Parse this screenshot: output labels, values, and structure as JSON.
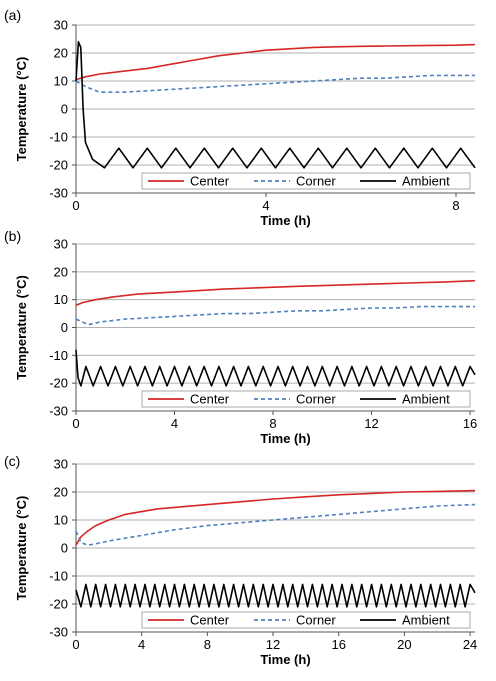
{
  "colors": {
    "center": "#d62728",
    "corner": "#4f81bd",
    "ambient": "#000000",
    "grid": "#b0b0b0"
  },
  "chart_data": [
    {
      "type": "line",
      "panel_label": "(a)",
      "xlabel": "Time (h)",
      "ylabel": "Temperature (°C)",
      "xlim": [
        0,
        8.4
      ],
      "ylim": [
        -30,
        30
      ],
      "xticks": [
        0,
        4,
        8
      ],
      "yticks": [
        -30,
        -20,
        -10,
        0,
        10,
        20,
        30
      ],
      "grid": "horizontal",
      "legend": "bottom-right",
      "series": [
        {
          "name": "Center",
          "style": "solid",
          "x": [
            0,
            0.2,
            0.5,
            1,
            1.5,
            2,
            2.5,
            3,
            3.5,
            4,
            4.5,
            5,
            5.5,
            6,
            6.5,
            7,
            7.5,
            8,
            8.4
          ],
          "y": [
            10.5,
            11.5,
            12.5,
            13.5,
            14.5,
            16,
            17.5,
            19,
            20,
            21,
            21.5,
            22,
            22.2,
            22.4,
            22.5,
            22.6,
            22.7,
            22.8,
            23
          ]
        },
        {
          "name": "Corner",
          "style": "dashed",
          "x": [
            0,
            0.2,
            0.5,
            1,
            1.5,
            2,
            2.5,
            3,
            3.5,
            4,
            4.5,
            5,
            5.5,
            6,
            6.5,
            7,
            7.5,
            8,
            8.4
          ],
          "y": [
            10,
            8,
            6,
            6,
            6.5,
            7,
            7.5,
            8,
            8.5,
            9,
            9.5,
            10,
            10.5,
            11,
            11,
            11.5,
            12,
            12,
            12
          ]
        },
        {
          "name": "Ambient",
          "style": "solid",
          "x": [
            0,
            0.05,
            0.1,
            0.15,
            0.2,
            0.35,
            0.6,
            0.9,
            1.2,
            1.5,
            1.8,
            2.1,
            2.4,
            2.7,
            3,
            3.3,
            3.6,
            3.9,
            4.2,
            4.5,
            4.8,
            5.1,
            5.4,
            5.7,
            6,
            6.3,
            6.6,
            6.9,
            7.2,
            7.5,
            7.8,
            8.1,
            8.4
          ],
          "y": [
            10,
            24,
            22,
            0,
            -12,
            -18,
            -21,
            -14,
            -21,
            -14,
            -21,
            -14,
            -21,
            -14,
            -21,
            -14,
            -21,
            -14,
            -21,
            -14,
            -21,
            -14,
            -21,
            -14,
            -21,
            -14,
            -21,
            -14,
            -21,
            -14,
            -21,
            -14,
            -21
          ]
        }
      ]
    },
    {
      "type": "line",
      "panel_label": "(b)",
      "xlabel": "Time (h)",
      "ylabel": "Temperature (°C)",
      "xlim": [
        0,
        16.2
      ],
      "ylim": [
        -30,
        30
      ],
      "xticks": [
        0,
        4,
        8,
        12,
        16
      ],
      "yticks": [
        -30,
        -20,
        -10,
        0,
        10,
        20,
        30
      ],
      "grid": "horizontal",
      "legend": "bottom-right",
      "series": [
        {
          "name": "Center",
          "style": "solid",
          "x": [
            0,
            0.3,
            0.8,
            1.5,
            2.5,
            3.5,
            4.5,
            6,
            7.5,
            9,
            10.5,
            12,
            13.5,
            15,
            16.2
          ],
          "y": [
            8,
            9,
            10,
            11,
            12,
            12.5,
            13,
            13.8,
            14.3,
            14.8,
            15.2,
            15.6,
            16,
            16.4,
            16.8
          ]
        },
        {
          "name": "Corner",
          "style": "dashed",
          "x": [
            0,
            0.5,
            1,
            2,
            3,
            4,
            5,
            6,
            7,
            8,
            9,
            10,
            11,
            12,
            13,
            14,
            15,
            16.2
          ],
          "y": [
            3,
            1,
            2,
            3,
            3.5,
            4,
            4.5,
            5,
            5,
            5.5,
            6,
            6,
            6.5,
            7,
            7,
            7.5,
            7.5,
            7.5
          ]
        },
        {
          "name": "Ambient",
          "style": "solid",
          "x": [
            0,
            0.08,
            0.2,
            0.4,
            0.7,
            1.0,
            1.3,
            1.6,
            1.9,
            2.2,
            2.5,
            2.8,
            3.1,
            3.4,
            3.7,
            4.0,
            4.3,
            4.6,
            4.9,
            5.2,
            5.5,
            5.8,
            6.1,
            6.4,
            6.7,
            7.0,
            7.3,
            7.6,
            7.9,
            8.2,
            8.5,
            8.8,
            9.1,
            9.4,
            9.7,
            10.0,
            10.3,
            10.6,
            10.9,
            11.2,
            11.5,
            11.8,
            12.1,
            12.4,
            12.7,
            13.0,
            13.3,
            13.6,
            13.9,
            14.2,
            14.5,
            14.8,
            15.1,
            15.4,
            15.7,
            16.0,
            16.2
          ],
          "y": [
            -8,
            -18,
            -21,
            -14,
            -21,
            -14,
            -21,
            -14,
            -21,
            -14,
            -21,
            -14,
            -21,
            -14,
            -21,
            -14,
            -21,
            -14,
            -21,
            -14,
            -21,
            -14,
            -21,
            -14,
            -21,
            -14,
            -21,
            -14,
            -21,
            -14,
            -21,
            -14,
            -21,
            -14,
            -21,
            -14,
            -21,
            -14,
            -21,
            -14,
            -21,
            -14,
            -21,
            -14,
            -21,
            -14,
            -21,
            -14,
            -21,
            -14,
            -21,
            -14,
            -21,
            -14,
            -21,
            -14,
            -17
          ]
        }
      ]
    },
    {
      "type": "line",
      "panel_label": "(c)",
      "xlabel": "Time (h)",
      "ylabel": "Temperature (°C)",
      "xlim": [
        0,
        24.3
      ],
      "ylim": [
        -30,
        30
      ],
      "xticks": [
        0,
        4,
        8,
        12,
        16,
        20,
        24
      ],
      "yticks": [
        -30,
        -20,
        -10,
        0,
        10,
        20,
        30
      ],
      "grid": "horizontal",
      "legend": "bottom-right",
      "series": [
        {
          "name": "Center",
          "style": "solid",
          "x": [
            0,
            0.3,
            0.7,
            1.2,
            2,
            3,
            4,
            5,
            6,
            8,
            10,
            12,
            14,
            16,
            18,
            20,
            22,
            24.3
          ],
          "y": [
            1,
            4,
            6,
            8,
            10,
            12,
            13,
            14,
            14.5,
            15.5,
            16.5,
            17.5,
            18.3,
            19,
            19.5,
            20,
            20.2,
            20.5
          ]
        },
        {
          "name": "Corner",
          "style": "dashed",
          "x": [
            0,
            0.3,
            0.7,
            1.2,
            2,
            3,
            4,
            5,
            6,
            8,
            10,
            12,
            14,
            16,
            18,
            20,
            22,
            24.3
          ],
          "y": [
            6,
            2,
            1,
            1.5,
            2.5,
            3.5,
            4.5,
            5.5,
            6.5,
            8,
            9,
            10,
            11,
            12,
            13,
            14,
            15,
            15.5
          ]
        },
        {
          "name": "Ambient",
          "style": "solid",
          "x": [
            0,
            0.3,
            0.6,
            0.9,
            1.2,
            1.5,
            1.8,
            2.1,
            2.4,
            2.7,
            3.0,
            3.3,
            3.6,
            3.9,
            4.2,
            4.5,
            4.8,
            5.1,
            5.4,
            5.7,
            6.0,
            6.3,
            6.6,
            6.9,
            7.2,
            7.5,
            7.8,
            8.1,
            8.4,
            8.7,
            9.0,
            9.3,
            9.6,
            9.9,
            10.2,
            10.5,
            10.8,
            11.1,
            11.4,
            11.7,
            12.0,
            12.3,
            12.6,
            12.9,
            13.2,
            13.5,
            13.8,
            14.1,
            14.4,
            14.7,
            15.0,
            15.3,
            15.6,
            15.9,
            16.2,
            16.5,
            16.8,
            17.1,
            17.4,
            17.7,
            18.0,
            18.3,
            18.6,
            18.9,
            19.2,
            19.5,
            19.8,
            20.1,
            20.4,
            20.7,
            21.0,
            21.3,
            21.6,
            21.9,
            22.2,
            22.5,
            22.8,
            23.1,
            23.4,
            23.7,
            24.0,
            24.3
          ],
          "y": [
            -15,
            -21,
            -13,
            -21,
            -13,
            -21,
            -13,
            -21,
            -13,
            -21,
            -13,
            -21,
            -13,
            -21,
            -13,
            -21,
            -13,
            -21,
            -13,
            -21,
            -13,
            -21,
            -13,
            -21,
            -13,
            -21,
            -13,
            -21,
            -13,
            -21,
            -13,
            -21,
            -13,
            -21,
            -13,
            -21,
            -13,
            -21,
            -13,
            -21,
            -13,
            -21,
            -13,
            -21,
            -13,
            -21,
            -13,
            -21,
            -13,
            -21,
            -13,
            -21,
            -13,
            -21,
            -13,
            -21,
            -13,
            -21,
            -13,
            -21,
            -13,
            -21,
            -13,
            -21,
            -13,
            -21,
            -13,
            -21,
            -13,
            -21,
            -13,
            -21,
            -13,
            -21,
            -13,
            -21,
            -13,
            -21,
            -13,
            -21,
            -13,
            -16
          ]
        }
      ]
    }
  ]
}
